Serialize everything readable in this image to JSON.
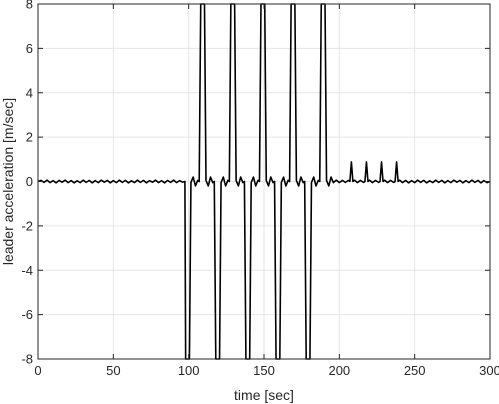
{
  "chart_data": {
    "type": "line",
    "title": "",
    "xlabel": "time [sec]",
    "ylabel": "leader acceleration [m/sec]",
    "xlim": [
      0,
      300
    ],
    "ylim": [
      -8,
      8
    ],
    "xticks": [
      0,
      50,
      100,
      150,
      200,
      250,
      300
    ],
    "yticks": [
      -8,
      -6,
      -4,
      -2,
      0,
      2,
      4,
      6,
      8
    ],
    "grid": true,
    "line_color": "#000000",
    "grid_color": "#e6e6e6",
    "axis_color": "#262626",
    "series": [
      {
        "points": [
          [
            0,
            0.0
          ],
          [
            2,
            0.05
          ],
          [
            4,
            -0.04
          ],
          [
            6,
            0.06
          ],
          [
            8,
            -0.05
          ],
          [
            10,
            0.04
          ],
          [
            12,
            -0.06
          ],
          [
            14,
            0.05
          ],
          [
            16,
            -0.03
          ],
          [
            18,
            0.06
          ],
          [
            20,
            -0.05
          ],
          [
            22,
            0.04
          ],
          [
            24,
            -0.06
          ],
          [
            26,
            0.03
          ],
          [
            28,
            -0.05
          ],
          [
            30,
            0.06
          ],
          [
            32,
            -0.04
          ],
          [
            34,
            0.05
          ],
          [
            36,
            -0.06
          ],
          [
            38,
            0.04
          ],
          [
            40,
            -0.05
          ],
          [
            42,
            0.06
          ],
          [
            44,
            -0.03
          ],
          [
            46,
            0.05
          ],
          [
            48,
            -0.06
          ],
          [
            50,
            0.04
          ],
          [
            52,
            -0.05
          ],
          [
            54,
            0.06
          ],
          [
            56,
            -0.04
          ],
          [
            58,
            0.05
          ],
          [
            60,
            -0.06
          ],
          [
            62,
            0.03
          ],
          [
            64,
            -0.05
          ],
          [
            66,
            0.06
          ],
          [
            68,
            -0.04
          ],
          [
            70,
            0.05
          ],
          [
            72,
            -0.06
          ],
          [
            74,
            0.04
          ],
          [
            76,
            -0.03
          ],
          [
            78,
            0.06
          ],
          [
            80,
            -0.05
          ],
          [
            82,
            0.04
          ],
          [
            84,
            -0.06
          ],
          [
            86,
            0.05
          ],
          [
            88,
            -0.04
          ],
          [
            90,
            0.06
          ],
          [
            92,
            -0.05
          ],
          [
            94,
            0.04
          ],
          [
            96,
            -0.03
          ],
          [
            97.5,
            0.0
          ],
          [
            98,
            -8
          ],
          [
            100.5,
            -8
          ],
          [
            101.5,
            -0.05
          ],
          [
            103,
            0.2
          ],
          [
            104.5,
            -0.2
          ],
          [
            106,
            0.05
          ],
          [
            107,
            0.0
          ],
          [
            108,
            8
          ],
          [
            110.5,
            8
          ],
          [
            111.5,
            0.05
          ],
          [
            113,
            -0.2
          ],
          [
            114.5,
            0.2
          ],
          [
            116,
            -0.05
          ],
          [
            117,
            0.0
          ],
          [
            118,
            -8
          ],
          [
            120.5,
            -8
          ],
          [
            121.5,
            -0.05
          ],
          [
            123,
            0.2
          ],
          [
            124.5,
            -0.2
          ],
          [
            126,
            0.05
          ],
          [
            127,
            0.0
          ],
          [
            128,
            8
          ],
          [
            130.5,
            8
          ],
          [
            131.5,
            0.05
          ],
          [
            133,
            -0.2
          ],
          [
            134.5,
            0.2
          ],
          [
            136,
            -0.05
          ],
          [
            137,
            0.0
          ],
          [
            138,
            -8
          ],
          [
            140.5,
            -8
          ],
          [
            141.5,
            -0.05
          ],
          [
            143,
            0.2
          ],
          [
            144.5,
            -0.2
          ],
          [
            146,
            0.05
          ],
          [
            147,
            0.0
          ],
          [
            148,
            8
          ],
          [
            150.5,
            8
          ],
          [
            151.5,
            0.05
          ],
          [
            153,
            -0.2
          ],
          [
            154.5,
            0.2
          ],
          [
            156,
            -0.05
          ],
          [
            157,
            0.0
          ],
          [
            158,
            -8
          ],
          [
            160.5,
            -8
          ],
          [
            161.5,
            -0.05
          ],
          [
            163,
            0.2
          ],
          [
            164.5,
            -0.2
          ],
          [
            166,
            0.05
          ],
          [
            167,
            0.0
          ],
          [
            168,
            8
          ],
          [
            170.5,
            8
          ],
          [
            171.5,
            0.05
          ],
          [
            173,
            -0.2
          ],
          [
            174.5,
            0.2
          ],
          [
            176,
            -0.05
          ],
          [
            177,
            0.0
          ],
          [
            178,
            -8
          ],
          [
            180.5,
            -8
          ],
          [
            181.5,
            -0.05
          ],
          [
            183,
            0.2
          ],
          [
            184.5,
            -0.2
          ],
          [
            186,
            0.05
          ],
          [
            187,
            0.0
          ],
          [
            188,
            8
          ],
          [
            190.5,
            8
          ],
          [
            191.5,
            0.05
          ],
          [
            193,
            -0.2
          ],
          [
            194.5,
            0.2
          ],
          [
            196,
            -0.05
          ],
          [
            198,
            0.06
          ],
          [
            200,
            -0.05
          ],
          [
            202,
            0.05
          ],
          [
            204,
            -0.04
          ],
          [
            206,
            0.05
          ],
          [
            207,
            0.0
          ],
          [
            208,
            0.88
          ],
          [
            209,
            0.0
          ],
          [
            210,
            0.06
          ],
          [
            212,
            -0.05
          ],
          [
            214,
            0.05
          ],
          [
            216,
            -0.04
          ],
          [
            217,
            0.0
          ],
          [
            218,
            0.88
          ],
          [
            219,
            0.0
          ],
          [
            220,
            0.06
          ],
          [
            222,
            -0.05
          ],
          [
            224,
            0.05
          ],
          [
            226,
            -0.04
          ],
          [
            227,
            0.0
          ],
          [
            228,
            0.88
          ],
          [
            229,
            0.0
          ],
          [
            230,
            0.06
          ],
          [
            232,
            -0.05
          ],
          [
            234,
            0.05
          ],
          [
            236,
            -0.04
          ],
          [
            237,
            0.0
          ],
          [
            238,
            0.88
          ],
          [
            239,
            0.0
          ],
          [
            240,
            0.06
          ],
          [
            242,
            -0.05
          ],
          [
            244,
            0.05
          ],
          [
            246,
            -0.06
          ],
          [
            248,
            0.04
          ],
          [
            250,
            -0.05
          ],
          [
            252,
            0.06
          ],
          [
            254,
            -0.04
          ],
          [
            256,
            0.05
          ],
          [
            258,
            -0.06
          ],
          [
            260,
            0.03
          ],
          [
            262,
            -0.05
          ],
          [
            264,
            0.06
          ],
          [
            266,
            -0.04
          ],
          [
            268,
            0.05
          ],
          [
            270,
            -0.06
          ],
          [
            272,
            0.04
          ],
          [
            274,
            -0.05
          ],
          [
            276,
            0.06
          ],
          [
            278,
            -0.03
          ],
          [
            280,
            0.05
          ],
          [
            282,
            -0.06
          ],
          [
            284,
            0.04
          ],
          [
            286,
            -0.05
          ],
          [
            288,
            0.06
          ],
          [
            290,
            -0.04
          ],
          [
            292,
            0.05
          ],
          [
            294,
            -0.06
          ],
          [
            296,
            0.04
          ],
          [
            298,
            -0.05
          ],
          [
            300,
            0.0
          ]
        ]
      }
    ]
  }
}
